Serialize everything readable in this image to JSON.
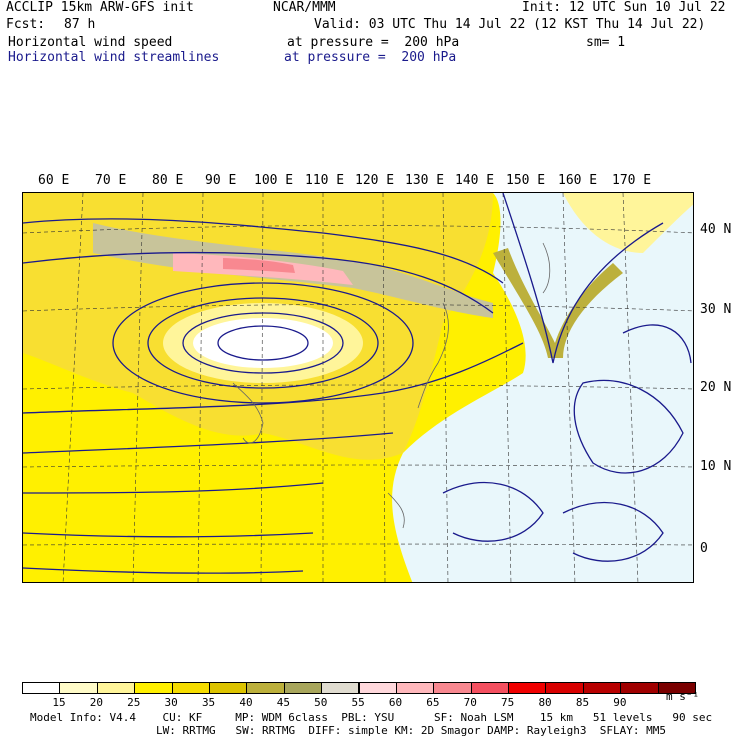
{
  "header": {
    "line1_left": "ACCLIP 15km ARW-GFS init",
    "line1_center": "NCAR/MMM",
    "line1_right": "Init: 12 UTC Sun 10 Jul 22",
    "fcst_label": "Fcst:",
    "fcst_value": "87 h",
    "valid": "Valid: 03 UTC Thu 14 Jul 22 (12 KST Thu 14 Jul 22)",
    "field1_name": "Horizontal wind speed",
    "field1_level": "at pressure =  200 hPa",
    "field1_sm": "sm= 1",
    "field2_name": "Horizontal wind streamlines",
    "field2_level": "at pressure =  200 hPa"
  },
  "map": {
    "lon_labels": [
      "60 E",
      "70 E",
      "80 E",
      "90 E",
      "100 E",
      "110 E",
      "120 E",
      "130 E",
      "140 E",
      "150 E",
      "160 E",
      "170 E"
    ],
    "lat_labels": [
      "40 N",
      "30 N",
      "20 N",
      "10 N",
      "0"
    ],
    "streamline_color": "#1a1a8c"
  },
  "colorbar": {
    "labels": [
      "15",
      "20",
      "25",
      "30",
      "35",
      "40",
      "45",
      "50",
      "55",
      "60",
      "65",
      "70",
      "75",
      "80",
      "85",
      "90"
    ],
    "units": "m s⁻¹",
    "colors": [
      "#ffffff",
      "#fffbc8",
      "#fff59a",
      "#fff000",
      "#f5dc00",
      "#dcc300",
      "#bcb03c",
      "#a8a65c",
      "#e0dcd0",
      "#ffd8dc",
      "#ffb8bc",
      "#f88890",
      "#f45060",
      "#f00000",
      "#d80000",
      "#b80000",
      "#a00000",
      "#7a0000"
    ]
  },
  "footer": {
    "line1": "Model Info: V4.4    CU: KF     MP: WDM 6class  PBL: YSU      SF: Noah LSM    15 km   51 levels   90 sec",
    "line2": "LW: RRTMG   SW: RRTMG  DIFF: simple KM: 2D Smagor DAMP: Rayleigh3  SFLAY: MM5"
  }
}
